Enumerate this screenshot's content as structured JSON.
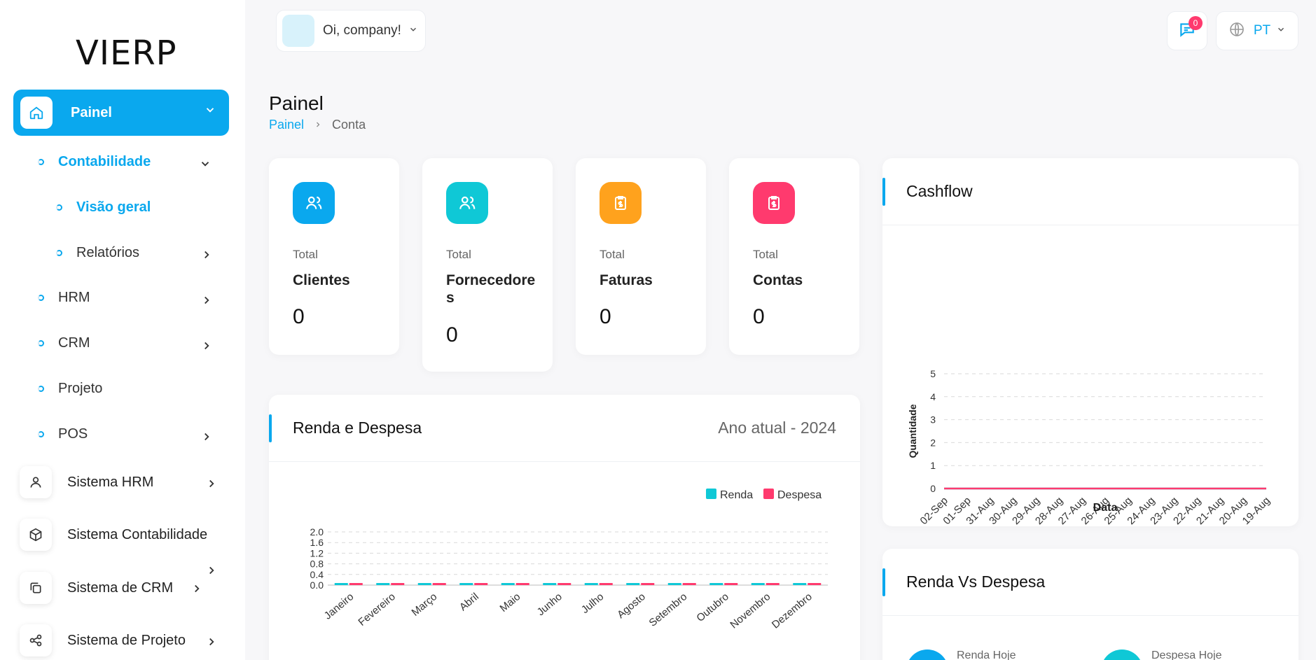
{
  "brand": "VIERP",
  "sidebar": {
    "active": {
      "label": "Painel"
    },
    "items": [
      {
        "label": "Contabilidade"
      },
      {
        "label": "Visão geral"
      },
      {
        "label": "Relatórios"
      },
      {
        "label": "HRM"
      },
      {
        "label": "CRM"
      },
      {
        "label": "Projeto"
      },
      {
        "label": "POS"
      }
    ],
    "systems": [
      {
        "label": "Sistema HRM",
        "icon": "user-icon"
      },
      {
        "label": "Sistema Contabilidade",
        "icon": "cube-icon"
      },
      {
        "label": "Sistema de CRM",
        "icon": "copy-icon"
      },
      {
        "label": "Sistema de Projeto",
        "icon": "share-icon"
      }
    ]
  },
  "header": {
    "greeting": "Oi, company!",
    "notifications": "0",
    "language": "PT"
  },
  "page": {
    "title": "Painel",
    "breadcrumb": [
      "Painel",
      "Conta"
    ]
  },
  "stats": [
    {
      "small": "Total",
      "name": "Clientes",
      "value": "0",
      "color": "#0aa8ee",
      "icon": "users-icon"
    },
    {
      "small": "Total",
      "name": "Fornecedores",
      "value": "0",
      "color": "#0fc8d6",
      "icon": "users-icon"
    },
    {
      "small": "Total",
      "name": "Faturas",
      "value": "0",
      "color": "#ffa21d",
      "icon": "invoice-icon"
    },
    {
      "small": "Total",
      "name": "Contas",
      "value": "0",
      "color": "#ff3a6e",
      "icon": "invoice-icon"
    }
  ],
  "panels": {
    "income": {
      "title": "Renda e Despesa",
      "period": "Ano atual - 2024"
    },
    "cashflow": {
      "title": "Cashflow"
    },
    "versus": {
      "title": "Renda Vs Despesa",
      "items": [
        "Renda Hoje",
        "Despesa Hoje"
      ]
    }
  },
  "chart_data": [
    {
      "type": "bar",
      "categories": [
        "Janeiro",
        "Fevereiro",
        "Março",
        "Abril",
        "Maio",
        "Junho",
        "Julho",
        "Agosto",
        "Setembro",
        "Outubro",
        "Novembro",
        "Dezembro"
      ],
      "series": [
        {
          "name": "Renda",
          "values": [
            0,
            0,
            0,
            0,
            0,
            0,
            0,
            0,
            0,
            0,
            0,
            0
          ],
          "color": "#0fc8d6"
        },
        {
          "name": "Despesa",
          "values": [
            0,
            0,
            0,
            0,
            0,
            0,
            0,
            0,
            0,
            0,
            0,
            0
          ],
          "color": "#ff3a6e"
        }
      ],
      "yticks": [
        "2.0",
        "1.6",
        "1.2",
        "0.8",
        "0.4",
        "0.0"
      ],
      "ylim": [
        0,
        2
      ],
      "legend": "top-right",
      "grid": true
    },
    {
      "type": "line",
      "x": [
        "02-Sep",
        "01-Sep",
        "31-Aug",
        "30-Aug",
        "29-Aug",
        "28-Aug",
        "27-Aug",
        "26-Aug",
        "25-Aug",
        "24-Aug",
        "23-Aug",
        "22-Aug",
        "21-Aug",
        "20-Aug",
        "19-Aug"
      ],
      "series": [
        {
          "values": [
            0,
            0,
            0,
            0,
            0,
            0,
            0,
            0,
            0,
            0,
            0,
            0,
            0,
            0,
            0
          ],
          "color": "#0fc8d6"
        },
        {
          "values": [
            0,
            0,
            0,
            0,
            0,
            0,
            0,
            0,
            0,
            0,
            0,
            0,
            0,
            0,
            0
          ],
          "color": "#ff3a6e"
        }
      ],
      "yticks": [
        "5",
        "4",
        "3",
        "2",
        "1",
        "0"
      ],
      "ylim": [
        0,
        5
      ],
      "xlabel": "Data",
      "ylabel": "Quantidade",
      "grid": true
    }
  ]
}
